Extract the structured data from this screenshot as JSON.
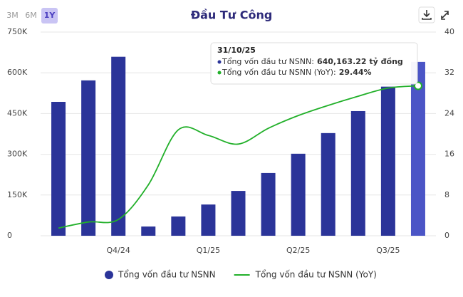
{
  "controls": {
    "ranges": [
      "3M",
      "6M",
      "1Y"
    ],
    "active": 2
  },
  "chart_data": {
    "type": "bar-line",
    "title": "Đầu Tư Công",
    "categories": [
      null,
      null,
      "Q4/24",
      null,
      null,
      "Q1/25",
      null,
      null,
      "Q2/25",
      null,
      null,
      "Q3/25",
      null
    ],
    "series": [
      {
        "name": "Tổng vốn đầu tư NSNN",
        "type": "bar",
        "color": "#2b3499",
        "highlight_color": "#4b55c6",
        "values": [
          493000,
          572000,
          659000,
          34000,
          71000,
          115000,
          165000,
          231000,
          302000,
          378000,
          459000,
          549000,
          640163.22
        ],
        "value_labels": [
          null,
          null,
          null,
          null,
          null,
          null,
          null,
          null,
          null,
          null,
          null,
          null,
          "640,163.22 tỷ đồng"
        ]
      },
      {
        "name": "Tổng vốn đầu tư NSNN (YoY)",
        "type": "line",
        "axis": "y2",
        "color": "#22b02a",
        "values": [
          1.5,
          2.7,
          3.2,
          10,
          20.8,
          19.7,
          18.0,
          21.1,
          23.6,
          25.6,
          27.4,
          29.0,
          29.44
        ],
        "value_labels": [
          null,
          null,
          null,
          null,
          null,
          null,
          null,
          null,
          null,
          null,
          null,
          null,
          "29.44%"
        ]
      }
    ],
    "ylim": [
      0,
      750000
    ],
    "yticks": [
      0,
      {
        "value": 150000,
        "label": "150K"
      },
      {
        "value": 300000,
        "label": "300K"
      },
      {
        "value": 450000,
        "label": "450K"
      },
      {
        "value": 600000,
        "label": "600K"
      },
      {
        "value": 750000,
        "label": "750K"
      }
    ],
    "y2lim": [
      0,
      40
    ],
    "y2ticks": [
      0,
      8,
      16,
      24,
      32,
      40
    ],
    "grid": true,
    "tooltip": {
      "date": "31/10/25",
      "index": 12,
      "rows": [
        {
          "label": "Tổng vốn đầu tư NSNN:",
          "series": 0
        },
        {
          "label": "Tổng vốn đầu tư NSNN (YoY):",
          "series": 1
        }
      ]
    },
    "legend": "bottom"
  }
}
